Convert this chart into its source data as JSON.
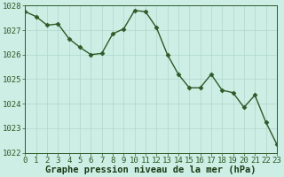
{
  "x": [
    0,
    1,
    2,
    3,
    4,
    5,
    6,
    7,
    8,
    9,
    10,
    11,
    12,
    13,
    14,
    15,
    16,
    17,
    18,
    19,
    20,
    21,
    22,
    23
  ],
  "y": [
    1027.75,
    1027.55,
    1027.2,
    1027.25,
    1026.65,
    1026.3,
    1026.0,
    1026.05,
    1026.85,
    1027.05,
    1027.8,
    1027.75,
    1027.1,
    1026.0,
    1025.2,
    1024.65,
    1024.65,
    1025.2,
    1024.55,
    1024.45,
    1023.85,
    1024.35,
    1023.25,
    1022.35
  ],
  "xlim": [
    0,
    23
  ],
  "ylim": [
    1022,
    1028
  ],
  "yticks": [
    1022,
    1023,
    1024,
    1025,
    1026,
    1027,
    1028
  ],
  "xticks": [
    0,
    1,
    2,
    3,
    4,
    5,
    6,
    7,
    8,
    9,
    10,
    11,
    12,
    13,
    14,
    15,
    16,
    17,
    18,
    19,
    20,
    21,
    22,
    23
  ],
  "xlabel": "Graphe pression niveau de la mer (hPa)",
  "line_color": "#2d5a27",
  "marker": "D",
  "marker_size": 2.5,
  "bg_color": "#cceee4",
  "grid_color": "#b0d8cc",
  "xlabel_color": "#1a3a14",
  "xlabel_fontsize": 7.5,
  "tick_fontsize": 6.5,
  "ytick_fontsize": 6.5
}
